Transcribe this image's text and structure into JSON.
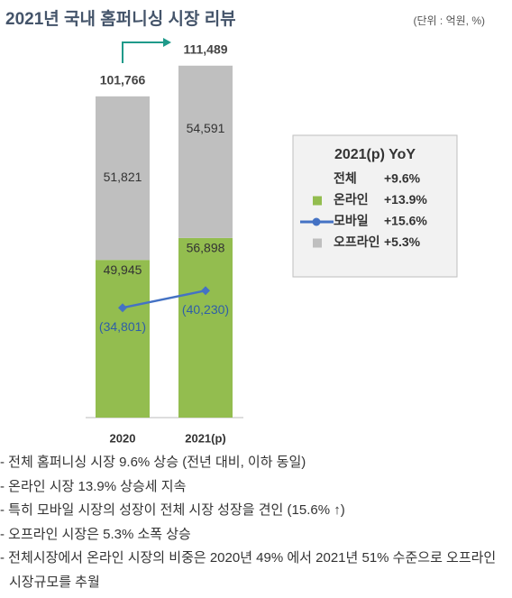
{
  "chart_data": {
    "type": "bar",
    "title": "2021년  국내 홈퍼니싱 시장 리뷰",
    "unit": "(단위 : 억원, %)",
    "categories": [
      "2020",
      "2021(p)"
    ],
    "ylim": [
      0,
      120000
    ],
    "total": {
      "name": "전체",
      "yoy": "+9.6%",
      "values": [
        101766,
        111489
      ],
      "value_labels": [
        "101,766",
        "111,489"
      ]
    },
    "series": [
      {
        "name": "온라인",
        "type": "bar",
        "color": "#93bd4f",
        "yoy": "+13.9%",
        "values": [
          49945,
          56898
        ],
        "value_labels": [
          "49,945",
          "56,898"
        ]
      },
      {
        "name": "모바일",
        "type": "line",
        "color": "#4472c4",
        "yoy": "+15.6%",
        "values": [
          34801,
          40230
        ],
        "value_labels": [
          "(34,801)",
          "(40,230)"
        ]
      },
      {
        "name": "오프라인",
        "type": "bar",
        "color": "#bfbfbf",
        "yoy": "+5.3%",
        "values": [
          51821,
          54591
        ],
        "value_labels": [
          "51,821",
          "54,591"
        ]
      }
    ],
    "legend_title": "2021(p)  YoY",
    "notes": [
      "전체 홈퍼니싱 시장 9.6% 상승 (전년 대비, 이하 동일)",
      "온라인 시장 13.9% 상승세 지속",
      "특히 모바일 시장의 성장이 전체 시장 성장을 견인 (15.6% ↑)",
      "오프라인 시장은 5.3% 소폭 상승",
      "전체시장에서 온라인 시장의 비중은 2020년  49% 에서  2021년 51% 수준으로 오프라인 시장규모를 추월"
    ]
  }
}
